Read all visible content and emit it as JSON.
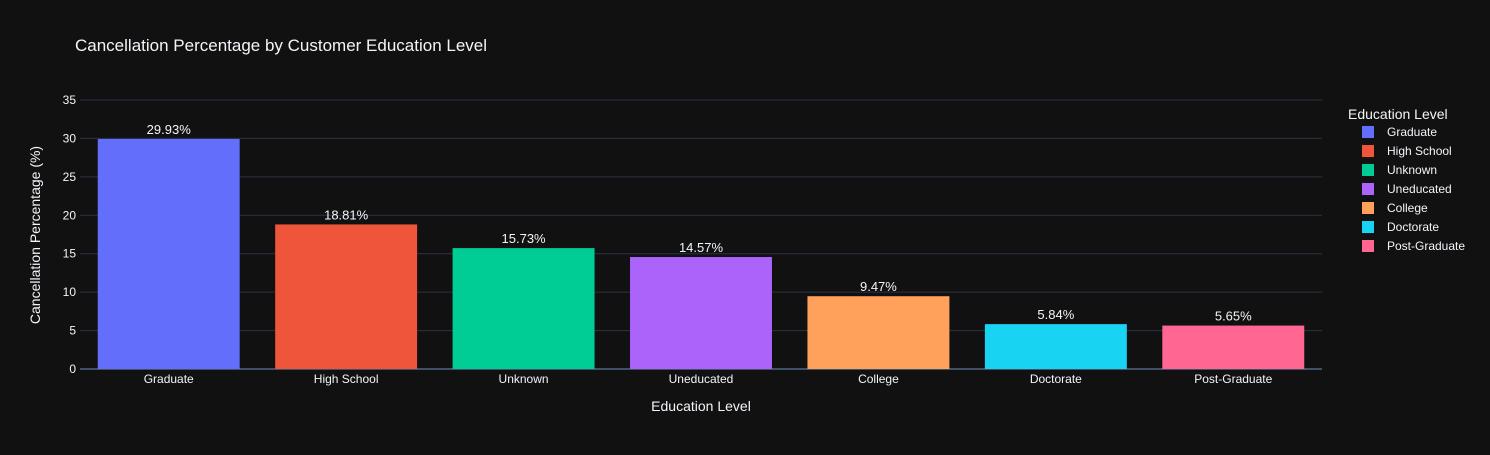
{
  "chart_data": {
    "type": "bar",
    "title": "Cancellation Percentage by Customer Education Level",
    "xlabel": "Education Level",
    "ylabel": "Cancellation Percentage (%)",
    "categories": [
      "Graduate",
      "High School",
      "Unknown",
      "Uneducated",
      "College",
      "Doctorate",
      "Post-Graduate"
    ],
    "values": [
      29.93,
      18.81,
      15.73,
      14.57,
      9.47,
      5.84,
      5.65
    ],
    "data_labels": [
      "29.93%",
      "18.81%",
      "15.73%",
      "14.57%",
      "9.47%",
      "5.84%",
      "5.65%"
    ],
    "colors": [
      "#636efa",
      "#EF553B",
      "#00cc96",
      "#ab63fa",
      "#FFA15A",
      "#19d3f3",
      "#FF6692"
    ],
    "ylim": [
      0,
      35
    ],
    "yticks": [
      0,
      5,
      10,
      15,
      20,
      25,
      30,
      35
    ],
    "grid": true,
    "legend": {
      "title": "Education Level",
      "placement": "right",
      "entries": [
        "Graduate",
        "High School",
        "Unknown",
        "Uneducated",
        "College",
        "Doctorate",
        "Post-Graduate"
      ]
    },
    "theme": {
      "background": "#111111",
      "grid_color": "#283442",
      "text_color": "#f2f5fa",
      "zero_line_color": "#506784"
    }
  }
}
